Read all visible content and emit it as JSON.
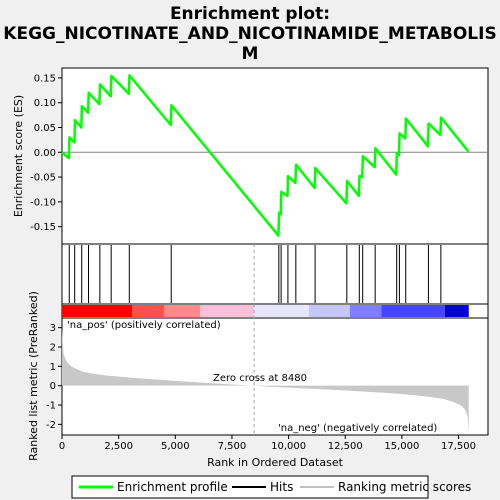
{
  "title_lines": [
    "Enrichment plot:",
    "KEGG_NICOTINATE_AND_NICOTINAMIDE_METABOLIS",
    "M"
  ],
  "colors": {
    "curve": "#00ff00",
    "hit": "#000000",
    "metric": "#c8c8c8",
    "pos_text": "#ff0000",
    "neg_text": "#0000ff",
    "zero_line": "#808080"
  },
  "chart_data": [
    {
      "type": "line",
      "name": "enrichment_score",
      "ylabel": "Enrichment score (ES)",
      "ylim": [
        -0.185,
        0.17
      ],
      "yticks": [
        -0.15,
        -0.1,
        -0.05,
        0.0,
        0.05,
        0.1,
        0.15
      ],
      "ytick_labels": [
        "-0.15",
        "-0.10",
        "-0.05",
        "0.00",
        "0.05",
        "0.10",
        "0.15"
      ],
      "xlim": [
        0,
        18800
      ],
      "grid": false,
      "series": [
        {
          "name": "Enrichment profile",
          "points": [
            [
              0,
              0.0
            ],
            [
              300,
              -0.012
            ],
            [
              330,
              0.03
            ],
            [
              550,
              0.02
            ],
            [
              570,
              0.065
            ],
            [
              850,
              0.05
            ],
            [
              880,
              0.093
            ],
            [
              1150,
              0.08
            ],
            [
              1180,
              0.12
            ],
            [
              1650,
              0.097
            ],
            [
              1680,
              0.137
            ],
            [
              2150,
              0.113
            ],
            [
              2180,
              0.154
            ],
            [
              2950,
              0.118
            ],
            [
              2980,
              0.155
            ],
            [
              4800,
              0.055
            ],
            [
              4830,
              0.095
            ],
            [
              9550,
              -0.168
            ],
            [
              9580,
              -0.122
            ],
            [
              9650,
              -0.125
            ],
            [
              9680,
              -0.08
            ],
            [
              9950,
              -0.088
            ],
            [
              9980,
              -0.048
            ],
            [
              10300,
              -0.062
            ],
            [
              10330,
              -0.025
            ],
            [
              11150,
              -0.072
            ],
            [
              11180,
              -0.032
            ],
            [
              12550,
              -0.103
            ],
            [
              12580,
              -0.058
            ],
            [
              13100,
              -0.088
            ],
            [
              13130,
              -0.048
            ],
            [
              13250,
              -0.05
            ],
            [
              13280,
              -0.008
            ],
            [
              13800,
              -0.03
            ],
            [
              13830,
              0.008
            ],
            [
              14750,
              -0.045
            ],
            [
              14780,
              -0.002
            ],
            [
              14870,
              -0.006
            ],
            [
              14900,
              0.038
            ],
            [
              15150,
              0.028
            ],
            [
              15180,
              0.068
            ],
            [
              16150,
              0.012
            ],
            [
              16180,
              0.058
            ],
            [
              16700,
              0.035
            ],
            [
              16730,
              0.07
            ],
            [
              17950,
              0.001
            ]
          ]
        }
      ]
    },
    {
      "type": "hits",
      "name": "hits",
      "x": [
        320,
        560,
        870,
        1170,
        1670,
        2170,
        2970,
        4820,
        9570,
        9670,
        9970,
        10320,
        11170,
        12570,
        13120,
        13270,
        13820,
        14770,
        14890,
        15170,
        16170,
        16720
      ]
    },
    {
      "type": "heatmap",
      "name": "ranking_color_bar",
      "segments": [
        {
          "from": 0,
          "to": 3100,
          "color": "#ff0000"
        },
        {
          "from": 3100,
          "to": 4500,
          "color": "#ff5050"
        },
        {
          "from": 4500,
          "to": 6100,
          "color": "#ff8a8a"
        },
        {
          "from": 6100,
          "to": 8480,
          "color": "#ffbfd9"
        },
        {
          "from": 8480,
          "to": 10900,
          "color": "#e6e6ff"
        },
        {
          "from": 10900,
          "to": 12700,
          "color": "#c6c6ff"
        },
        {
          "from": 12700,
          "to": 14100,
          "color": "#7f7fff"
        },
        {
          "from": 14100,
          "to": 16900,
          "color": "#4646ff"
        },
        {
          "from": 16900,
          "to": 17950,
          "color": "#0000d0"
        }
      ]
    },
    {
      "type": "area",
      "name": "ranked_metric",
      "xlabel": "Rank in Ordered Dataset",
      "ylabel": "Ranked list metric (PreRanked)",
      "ylim": [
        -2.55,
        3.5
      ],
      "yticks": [
        -2,
        -1,
        0,
        1,
        2,
        3
      ],
      "ytick_labels": [
        "-2",
        "-1",
        "0",
        "1",
        "2",
        "3"
      ],
      "xticks": [
        0,
        2500,
        5000,
        7500,
        10000,
        12500,
        15000,
        17500
      ],
      "xtick_labels": [
        "0",
        "2,500",
        "5,000",
        "7,500",
        "10,000",
        "12,500",
        "15,000",
        "17,500"
      ],
      "xlim": [
        0,
        18800
      ],
      "points": [
        [
          0,
          3.0
        ],
        [
          30,
          2.2
        ],
        [
          80,
          1.6
        ],
        [
          200,
          1.25
        ],
        [
          400,
          1.0
        ],
        [
          700,
          0.82
        ],
        [
          1000,
          0.7
        ],
        [
          1500,
          0.6
        ],
        [
          2000,
          0.52
        ],
        [
          3000,
          0.42
        ],
        [
          4000,
          0.33
        ],
        [
          5000,
          0.25
        ],
        [
          6000,
          0.17
        ],
        [
          7000,
          0.1
        ],
        [
          8000,
          0.03
        ],
        [
          8480,
          0.0
        ],
        [
          9000,
          -0.04
        ],
        [
          10000,
          -0.1
        ],
        [
          11000,
          -0.16
        ],
        [
          12000,
          -0.22
        ],
        [
          13000,
          -0.28
        ],
        [
          14000,
          -0.35
        ],
        [
          15000,
          -0.43
        ],
        [
          16000,
          -0.55
        ],
        [
          16800,
          -0.68
        ],
        [
          17300,
          -0.85
        ],
        [
          17650,
          -1.05
        ],
        [
          17800,
          -1.25
        ],
        [
          17900,
          -1.6
        ],
        [
          17950,
          -2.4
        ]
      ],
      "zero_cross": 8480,
      "annotations": {
        "pos": "'na_pos' (positively correlated)",
        "neg": "'na_neg' (negatively correlated)",
        "zero": "Zero cross at 8480"
      }
    }
  ],
  "legend": {
    "items": [
      {
        "label": "Enrichment profile",
        "color": "#00ff00"
      },
      {
        "label": "Hits",
        "color": "#000000"
      },
      {
        "label": "Ranking metric scores",
        "color": "#c0c0c0"
      }
    ]
  }
}
